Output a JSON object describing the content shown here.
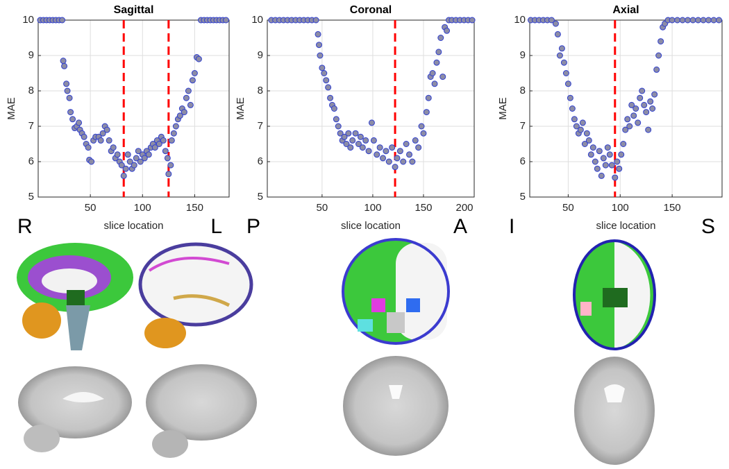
{
  "chart_data": [
    {
      "type": "scatter",
      "title": "Sagittal",
      "xlabel": "slice location",
      "ylabel": "MAE",
      "annotations": [
        "R",
        "L"
      ],
      "x": [
        2,
        5,
        8,
        11,
        14,
        17,
        20,
        23,
        24,
        25,
        27,
        28,
        30,
        31,
        33,
        35,
        37,
        39,
        40,
        42,
        44,
        46,
        48,
        49,
        51,
        53,
        55,
        58,
        60,
        62,
        64,
        66,
        68,
        70,
        72,
        74,
        76,
        78,
        80,
        82,
        84,
        86,
        88,
        90,
        92,
        94,
        96,
        98,
        100,
        102,
        104,
        106,
        108,
        110,
        112,
        114,
        116,
        118,
        120,
        122,
        124,
        125,
        127,
        128,
        130,
        132,
        134,
        136,
        138,
        140,
        142,
        144,
        146,
        148,
        150,
        152,
        154,
        156,
        159,
        162,
        165,
        168,
        171,
        174,
        177,
        180
      ],
      "values": [
        10,
        10,
        10,
        10,
        10,
        10,
        10,
        10,
        8.85,
        8.7,
        8.2,
        8.0,
        7.8,
        7.4,
        7.2,
        6.95,
        7.0,
        7.1,
        6.9,
        6.8,
        6.7,
        6.5,
        6.4,
        6.05,
        6.0,
        6.6,
        6.7,
        6.7,
        6.6,
        6.8,
        7.0,
        6.9,
        6.6,
        6.3,
        6.4,
        6.1,
        6.2,
        6.0,
        5.9,
        5.6,
        5.8,
        6.2,
        6.0,
        5.8,
        5.9,
        6.1,
        6.3,
        6.0,
        6.2,
        6.1,
        6.3,
        6.2,
        6.4,
        6.5,
        6.4,
        6.6,
        6.5,
        6.7,
        6.6,
        6.3,
        6.1,
        5.65,
        5.9,
        6.6,
        6.8,
        7.0,
        7.2,
        7.3,
        7.5,
        7.4,
        7.8,
        8.0,
        7.6,
        8.3,
        8.5,
        8.95,
        8.9,
        10,
        10,
        10,
        10,
        10,
        10,
        10,
        10,
        10
      ],
      "color": "#8c8ca6",
      "edgecolor": "#2f3fd0",
      "vlines": [
        82,
        125
      ],
      "vline_color": "#ff0000",
      "xlim": [
        0,
        183
      ],
      "xticks": [
        50,
        100,
        150
      ],
      "ylim": [
        5,
        10
      ],
      "yticks": [
        5,
        6,
        7,
        8,
        9,
        10
      ],
      "grid": true
    },
    {
      "type": "scatter",
      "title": "Coronal",
      "xlabel": "slice location",
      "ylabel": "MAE",
      "annotations": [
        "P",
        "A"
      ],
      "x": [
        0,
        4,
        8,
        12,
        16,
        20,
        24,
        28,
        32,
        36,
        40,
        44,
        46,
        47,
        48,
        50,
        52,
        54,
        56,
        58,
        60,
        62,
        64,
        66,
        68,
        70,
        72,
        74,
        76,
        78,
        80,
        83,
        86,
        88,
        90,
        93,
        96,
        99,
        101,
        104,
        107,
        110,
        113,
        116,
        119,
        122,
        124,
        127,
        130,
        133,
        136,
        139,
        142,
        145,
        148,
        150,
        153,
        155,
        157,
        159,
        161,
        163,
        165,
        167,
        169,
        171,
        173,
        175,
        178,
        182,
        186,
        190,
        194,
        198
      ],
      "values": [
        10,
        10,
        10,
        10,
        10,
        10,
        10,
        10,
        10,
        10,
        10,
        10,
        9.6,
        9.3,
        9.0,
        8.65,
        8.5,
        8.3,
        8.1,
        7.8,
        7.6,
        7.5,
        7.2,
        7.0,
        6.8,
        6.6,
        6.7,
        6.5,
        6.8,
        6.4,
        6.6,
        6.8,
        6.5,
        6.7,
        6.4,
        6.6,
        6.3,
        7.1,
        6.6,
        6.2,
        6.4,
        6.1,
        6.3,
        6.0,
        6.4,
        5.85,
        6.1,
        6.3,
        6.0,
        6.5,
        6.2,
        6.0,
        6.6,
        6.4,
        7.0,
        6.8,
        7.4,
        7.8,
        8.4,
        8.5,
        8.2,
        8.8,
        9.1,
        9.5,
        8.4,
        9.8,
        9.7,
        10,
        10,
        10,
        10,
        10,
        10,
        10
      ],
      "color": "#8c8ca6",
      "edgecolor": "#2f3fd0",
      "vlines": [
        122
      ],
      "vline_color": "#ff0000",
      "xlim": [
        -4,
        200
      ],
      "xticks": [
        50,
        100,
        150,
        200
      ],
      "ylim": [
        5,
        10
      ],
      "yticks": [
        5,
        6,
        7,
        8,
        9,
        10
      ],
      "grid": true
    },
    {
      "type": "scatter",
      "title": "Axial",
      "xlabel": "slice location",
      "ylabel": "MAE",
      "annotations": [
        "I",
        "S"
      ],
      "x": [
        14,
        18,
        22,
        26,
        30,
        34,
        38,
        40,
        42,
        44,
        46,
        48,
        50,
        52,
        54,
        56,
        58,
        60,
        62,
        64,
        66,
        68,
        70,
        72,
        74,
        76,
        78,
        80,
        82,
        84,
        86,
        88,
        90,
        92,
        95,
        97,
        99,
        101,
        103,
        105,
        107,
        109,
        111,
        113,
        115,
        117,
        119,
        121,
        123,
        125,
        127,
        129,
        131,
        133,
        135,
        137,
        139,
        141,
        143,
        146,
        150,
        155,
        160,
        165,
        170,
        175,
        180,
        185,
        190,
        195
      ],
      "values": [
        10,
        10,
        10,
        10,
        10,
        10,
        9.9,
        9.6,
        9.0,
        9.2,
        8.8,
        8.5,
        8.2,
        7.8,
        7.5,
        7.2,
        7.0,
        6.8,
        6.9,
        7.1,
        6.5,
        6.8,
        6.6,
        6.2,
        6.4,
        6.0,
        5.8,
        6.3,
        5.6,
        6.1,
        5.9,
        6.4,
        6.2,
        5.9,
        5.55,
        6.0,
        5.8,
        6.2,
        6.5,
        6.9,
        7.2,
        7.0,
        7.6,
        7.3,
        7.5,
        7.1,
        7.8,
        8.0,
        7.6,
        7.4,
        6.9,
        7.7,
        7.5,
        7.9,
        8.6,
        9.0,
        9.4,
        9.8,
        9.9,
        10,
        10,
        10,
        10,
        10,
        10,
        10,
        10,
        10,
        10,
        10
      ],
      "color": "#8c8ca6",
      "edgecolor": "#2f3fd0",
      "vlines": [
        95
      ],
      "vline_color": "#ff0000",
      "xlim": [
        13,
        198
      ],
      "xticks": [
        50,
        100,
        150
      ],
      "ylim": [
        5,
        10
      ],
      "yticks": [
        5,
        6,
        7,
        8,
        9,
        10
      ],
      "grid": true
    }
  ]
}
